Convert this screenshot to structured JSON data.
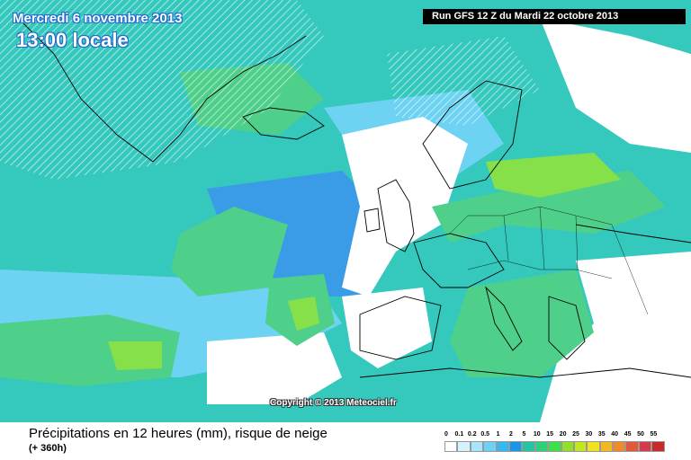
{
  "header": {
    "date": "Mercredi 6 novembre 2013",
    "time": "13:00 locale",
    "run": "Run GFS 12 Z du Mardi 22 octobre 2013"
  },
  "copyright": "Copyright © 2013 Meteociel.fr",
  "footer": {
    "title": "Précipitations en 12 heures (mm), risque de neige",
    "subtitle": "(+ 360h)"
  },
  "legend": {
    "labels": [
      "0",
      "0.1",
      "0.2",
      "0.5",
      "1",
      "2",
      "5",
      "10",
      "15",
      "20",
      "25",
      "30",
      "35",
      "40",
      "45",
      "50",
      "55"
    ],
    "colors": [
      "#ffffff",
      "#d6f2ff",
      "#a8e4fb",
      "#6fd0f6",
      "#35b7f0",
      "#1a96e6",
      "#26c4a0",
      "#2bd27a",
      "#3ee04a",
      "#8ee02a",
      "#c4e61c",
      "#f0e21c",
      "#f2b81e",
      "#f08a2a",
      "#e05a3a",
      "#d43a4a",
      "#c62a2a"
    ]
  },
  "map_colors": {
    "ocean_base": "#2fc7bd",
    "moderate_blue": "#3a9be6",
    "light_blue": "#6cd0f3",
    "green_band": "#4fd08a",
    "bright_green": "#86e04a",
    "dry": "#ffffff"
  }
}
